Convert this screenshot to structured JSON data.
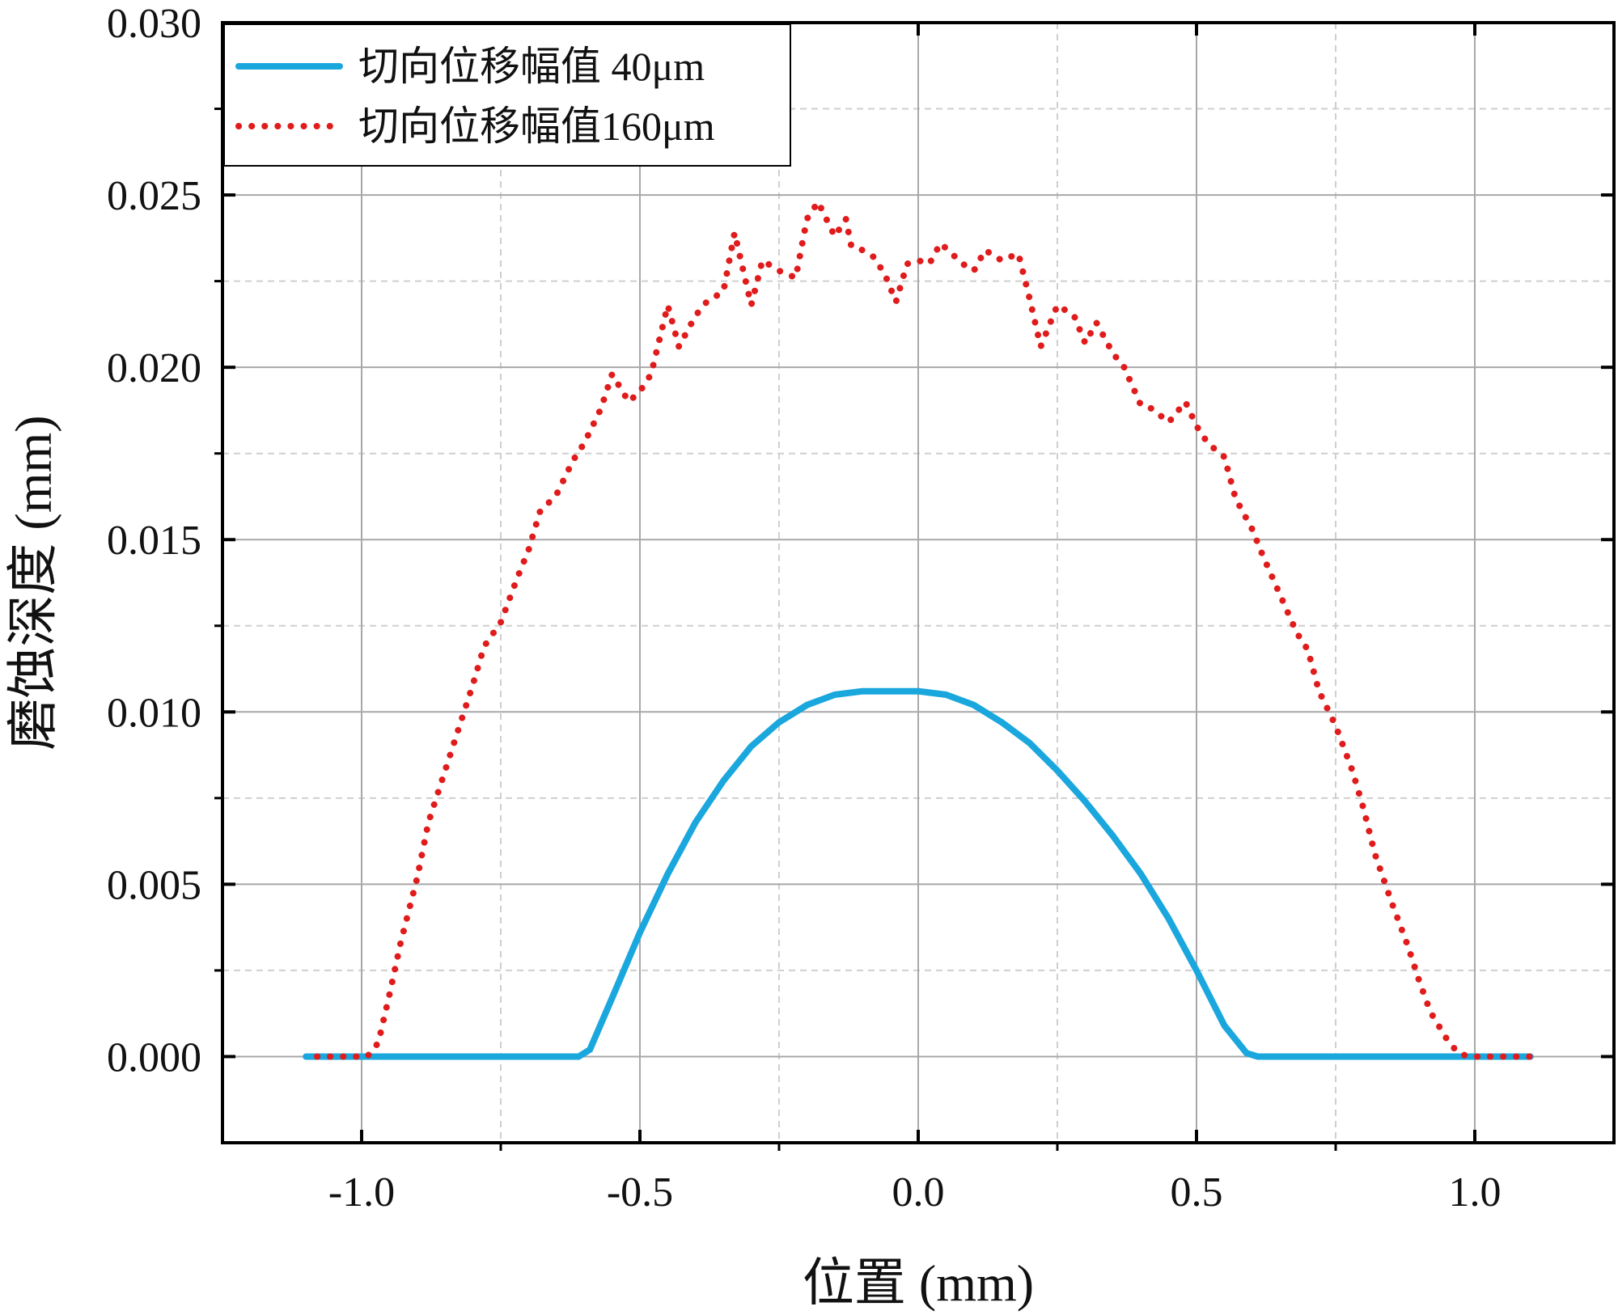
{
  "chart_data": {
    "type": "line",
    "title": "",
    "xlabel": "位置 (mm)",
    "ylabel": "磨蚀深度 (mm)",
    "xlim": [
      -1.25,
      1.25
    ],
    "ylim": [
      -0.0025,
      0.03
    ],
    "x_ticks": [
      "-1.0",
      "-0.5",
      "0.0",
      "0.5",
      "1.0"
    ],
    "y_ticks": [
      "0.000",
      "0.005",
      "0.010",
      "0.015",
      "0.020",
      "0.025",
      "0.030"
    ],
    "grid": true,
    "legend_position": "top-left",
    "series": [
      {
        "name": "切向位移幅值 40μm",
        "style": "solid",
        "color": "#1aa7dd",
        "x": [
          -1.1,
          -0.9,
          -0.7,
          -0.61,
          -0.59,
          -0.55,
          -0.5,
          -0.45,
          -0.4,
          -0.35,
          -0.3,
          -0.25,
          -0.2,
          -0.15,
          -0.1,
          -0.05,
          0.0,
          0.05,
          0.1,
          0.15,
          0.2,
          0.25,
          0.3,
          0.35,
          0.4,
          0.45,
          0.5,
          0.55,
          0.59,
          0.61,
          0.7,
          0.9,
          1.1
        ],
        "y": [
          0.0,
          0.0,
          0.0,
          0.0,
          0.0002,
          0.0017,
          0.0036,
          0.0053,
          0.0068,
          0.008,
          0.009,
          0.0097,
          0.0102,
          0.0105,
          0.0106,
          0.0106,
          0.0106,
          0.0105,
          0.0102,
          0.0097,
          0.0091,
          0.0083,
          0.0074,
          0.0064,
          0.0053,
          0.004,
          0.0025,
          0.0009,
          0.0001,
          0.0,
          0.0,
          0.0,
          0.0
        ]
      },
      {
        "name": "切向位移幅值160μm",
        "style": "dotted",
        "color": "#e01b1b",
        "x": [
          -1.08,
          -1.05,
          -1.02,
          -0.99,
          -0.97,
          -0.95,
          -0.93,
          -0.9,
          -0.88,
          -0.85,
          -0.82,
          -0.8,
          -0.78,
          -0.75,
          -0.72,
          -0.7,
          -0.68,
          -0.65,
          -0.62,
          -0.6,
          -0.57,
          -0.55,
          -0.52,
          -0.5,
          -0.48,
          -0.45,
          -0.43,
          -0.4,
          -0.38,
          -0.35,
          -0.33,
          -0.3,
          -0.28,
          -0.25,
          -0.22,
          -0.2,
          -0.18,
          -0.15,
          -0.13,
          -0.12,
          -0.1,
          -0.08,
          -0.06,
          -0.04,
          -0.02,
          0.0,
          0.02,
          0.04,
          0.06,
          0.08,
          0.1,
          0.12,
          0.15,
          0.18,
          0.2,
          0.22,
          0.25,
          0.28,
          0.3,
          0.32,
          0.35,
          0.37,
          0.4,
          0.42,
          0.45,
          0.48,
          0.5,
          0.52,
          0.55,
          0.57,
          0.6,
          0.62,
          0.65,
          0.68,
          0.7,
          0.72,
          0.75,
          0.78,
          0.8,
          0.82,
          0.85,
          0.88,
          0.9,
          0.92,
          0.95,
          0.97,
          0.99,
          1.02,
          1.05,
          1.08,
          1.1
        ],
        "y": [
          0.0,
          0.0,
          0.0,
          0.0,
          0.0004,
          0.0018,
          0.0033,
          0.0052,
          0.0068,
          0.0083,
          0.0098,
          0.0108,
          0.0119,
          0.0126,
          0.0139,
          0.0147,
          0.0158,
          0.0163,
          0.0173,
          0.0178,
          0.0188,
          0.0198,
          0.019,
          0.0193,
          0.0198,
          0.0218,
          0.0206,
          0.0215,
          0.0219,
          0.0222,
          0.0239,
          0.0218,
          0.0231,
          0.0228,
          0.0226,
          0.0243,
          0.0248,
          0.0238,
          0.0243,
          0.0235,
          0.0234,
          0.0232,
          0.0227,
          0.0219,
          0.023,
          0.0231,
          0.023,
          0.0236,
          0.0233,
          0.023,
          0.0228,
          0.0234,
          0.0231,
          0.0233,
          0.022,
          0.0206,
          0.0218,
          0.0215,
          0.0207,
          0.0213,
          0.0204,
          0.02,
          0.0189,
          0.0188,
          0.0184,
          0.019,
          0.0183,
          0.0178,
          0.0174,
          0.0162,
          0.0153,
          0.0145,
          0.0134,
          0.0123,
          0.0118,
          0.0106,
          0.0096,
          0.0083,
          0.0072,
          0.0059,
          0.0045,
          0.0032,
          0.0022,
          0.0013,
          0.0005,
          0.0001,
          0.0,
          0.0,
          0.0,
          0.0,
          0.0
        ]
      }
    ]
  }
}
